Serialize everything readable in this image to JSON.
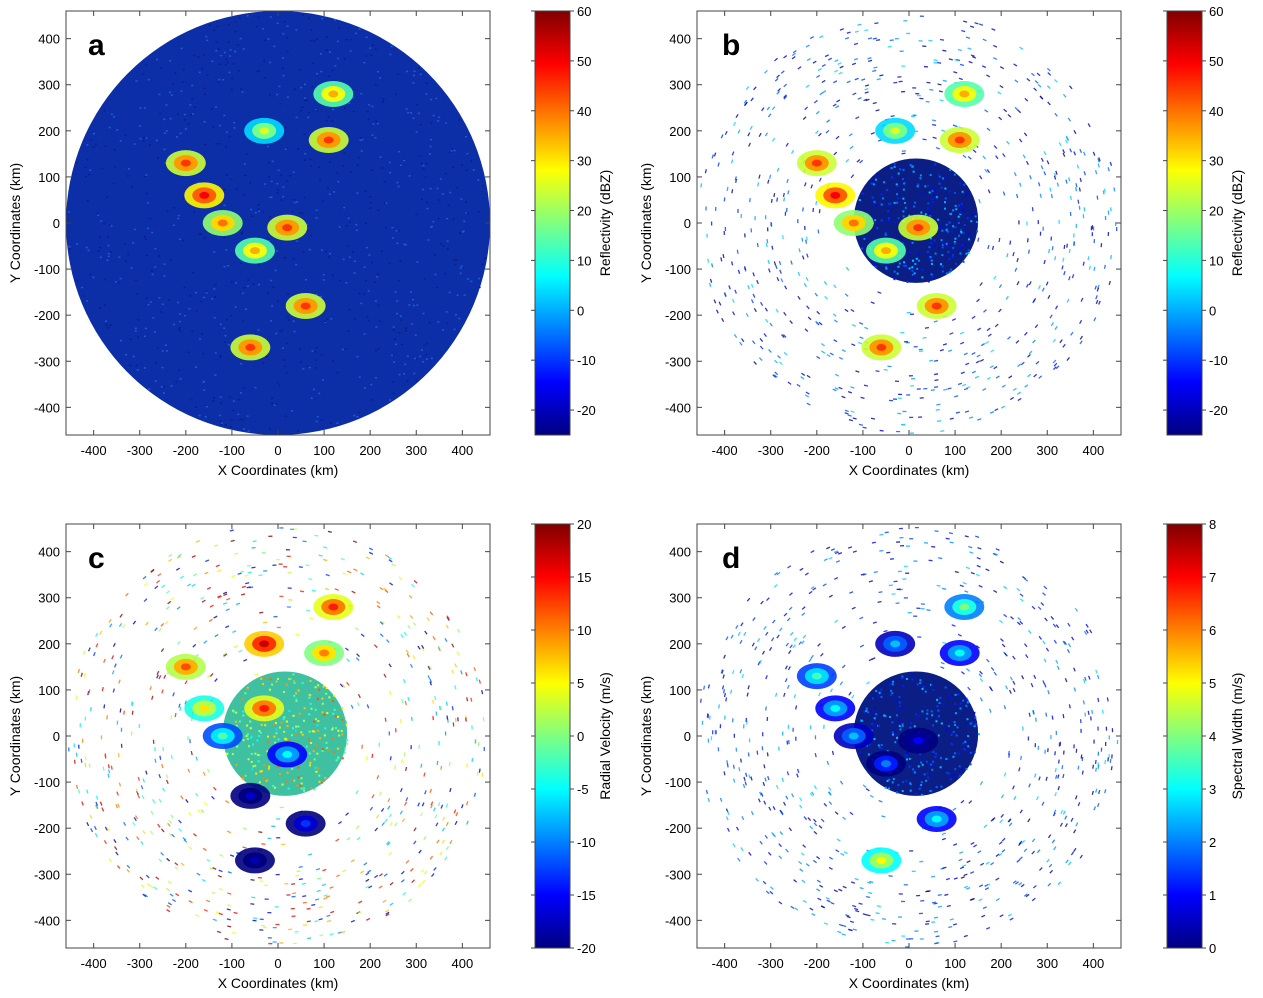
{
  "colormap_stops": [
    "#000080",
    "#0000ff",
    "#0080ff",
    "#00ffff",
    "#80ff80",
    "#ffff00",
    "#ff8000",
    "#ff0000",
    "#800000"
  ],
  "chart_data": [
    {
      "panel": "a",
      "type": "heatmap",
      "xlabel": "X Coordinates (km)",
      "ylabel": "Y Coordinates (km)",
      "xlim": [
        -460,
        460
      ],
      "ylim": [
        -460,
        460
      ],
      "xticks": [
        -400,
        -300,
        -200,
        -100,
        0,
        100,
        200,
        300,
        400
      ],
      "yticks": [
        400,
        300,
        200,
        100,
        0,
        -100,
        -200,
        -300,
        -400
      ],
      "colorbar": {
        "label": "Reflectivity (dBZ)",
        "min": -25,
        "max": 60,
        "ticks": [
          60,
          50,
          40,
          30,
          20,
          10,
          0,
          -10,
          -20
        ]
      },
      "coverage": "full-disk",
      "echoes": [
        {
          "x": -200,
          "y": 130,
          "value": 45
        },
        {
          "x": -160,
          "y": 60,
          "value": 50
        },
        {
          "x": -120,
          "y": 0,
          "value": 40
        },
        {
          "x": -50,
          "y": -60,
          "value": 35
        },
        {
          "x": 20,
          "y": -10,
          "value": 45
        },
        {
          "x": 60,
          "y": -180,
          "value": 45
        },
        {
          "x": -60,
          "y": -270,
          "value": 45
        },
        {
          "x": 110,
          "y": 180,
          "value": 45
        },
        {
          "x": 120,
          "y": 280,
          "value": 35
        },
        {
          "x": -30,
          "y": 200,
          "value": 25
        }
      ]
    },
    {
      "panel": "b",
      "type": "heatmap",
      "xlabel": "X Coordinates (km)",
      "ylabel": "Y Coordinates (km)",
      "xlim": [
        -460,
        460
      ],
      "ylim": [
        -460,
        460
      ],
      "xticks": [
        -400,
        -300,
        -200,
        -100,
        0,
        100,
        200,
        300,
        400
      ],
      "yticks": [
        400,
        300,
        200,
        100,
        0,
        -100,
        -200,
        -300,
        -400
      ],
      "colorbar": {
        "label": "Reflectivity (dBZ)",
        "min": -25,
        "max": 60,
        "ticks": [
          60,
          50,
          40,
          30,
          20,
          10,
          0,
          -10,
          -20
        ]
      },
      "coverage": "inner-disk-filtered",
      "echoes": [
        {
          "x": -200,
          "y": 130,
          "value": 45
        },
        {
          "x": -160,
          "y": 60,
          "value": 50
        },
        {
          "x": -120,
          "y": 0,
          "value": 40
        },
        {
          "x": -50,
          "y": -60,
          "value": 35
        },
        {
          "x": 20,
          "y": -10,
          "value": 45
        },
        {
          "x": 60,
          "y": -180,
          "value": 45
        },
        {
          "x": -60,
          "y": -270,
          "value": 45
        },
        {
          "x": 110,
          "y": 180,
          "value": 45
        },
        {
          "x": 120,
          "y": 280,
          "value": 35
        },
        {
          "x": -30,
          "y": 200,
          "value": 25
        }
      ]
    },
    {
      "panel": "c",
      "type": "heatmap",
      "xlabel": "X Coordinates (km)",
      "ylabel": "Y Coordinates (km)",
      "xlim": [
        -460,
        460
      ],
      "ylim": [
        -460,
        460
      ],
      "xticks": [
        -400,
        -300,
        -200,
        -100,
        0,
        100,
        200,
        300,
        400
      ],
      "yticks": [
        400,
        300,
        200,
        100,
        0,
        -100,
        -200,
        -300,
        -400
      ],
      "colorbar": {
        "label": "Radial Velocity (m/s)",
        "min": -20,
        "max": 20,
        "ticks": [
          20,
          15,
          10,
          5,
          0,
          -5,
          -10,
          -15,
          -20
        ]
      },
      "coverage": "velocity",
      "echoes": [
        {
          "x": -200,
          "y": 150,
          "value": 12
        },
        {
          "x": -160,
          "y": 60,
          "value": 6
        },
        {
          "x": -120,
          "y": 0,
          "value": -2
        },
        {
          "x": -30,
          "y": 60,
          "value": 14
        },
        {
          "x": 20,
          "y": -40,
          "value": -5
        },
        {
          "x": -60,
          "y": -130,
          "value": -17
        },
        {
          "x": 60,
          "y": -190,
          "value": -13
        },
        {
          "x": -50,
          "y": -270,
          "value": -18
        },
        {
          "x": 100,
          "y": 180,
          "value": 10
        },
        {
          "x": 120,
          "y": 280,
          "value": 14
        },
        {
          "x": -30,
          "y": 200,
          "value": 17
        }
      ]
    },
    {
      "panel": "d",
      "type": "heatmap",
      "xlabel": "X Coordinates (km)",
      "ylabel": "Y Coordinates (km)",
      "xlim": [
        -460,
        460
      ],
      "ylim": [
        -460,
        460
      ],
      "xticks": [
        -400,
        -300,
        -200,
        -100,
        0,
        100,
        200,
        300,
        400
      ],
      "yticks": [
        400,
        300,
        200,
        100,
        0,
        -100,
        -200,
        -300,
        -400
      ],
      "colorbar": {
        "label": "Spectral Width (m/s)",
        "min": 0,
        "max": 8,
        "ticks": [
          8,
          7,
          6,
          5,
          4,
          3,
          2,
          1,
          0
        ]
      },
      "coverage": "inner-disk-filtered",
      "echoes": [
        {
          "x": -200,
          "y": 130,
          "value": 3.5
        },
        {
          "x": -160,
          "y": 60,
          "value": 3
        },
        {
          "x": -120,
          "y": 0,
          "value": 2.5
        },
        {
          "x": -50,
          "y": -60,
          "value": 2
        },
        {
          "x": 20,
          "y": -10,
          "value": 1
        },
        {
          "x": 60,
          "y": -180,
          "value": 3
        },
        {
          "x": -60,
          "y": -270,
          "value": 5
        },
        {
          "x": 110,
          "y": 180,
          "value": 3
        },
        {
          "x": 120,
          "y": 280,
          "value": 4
        },
        {
          "x": -30,
          "y": 200,
          "value": 2.5
        }
      ]
    }
  ]
}
